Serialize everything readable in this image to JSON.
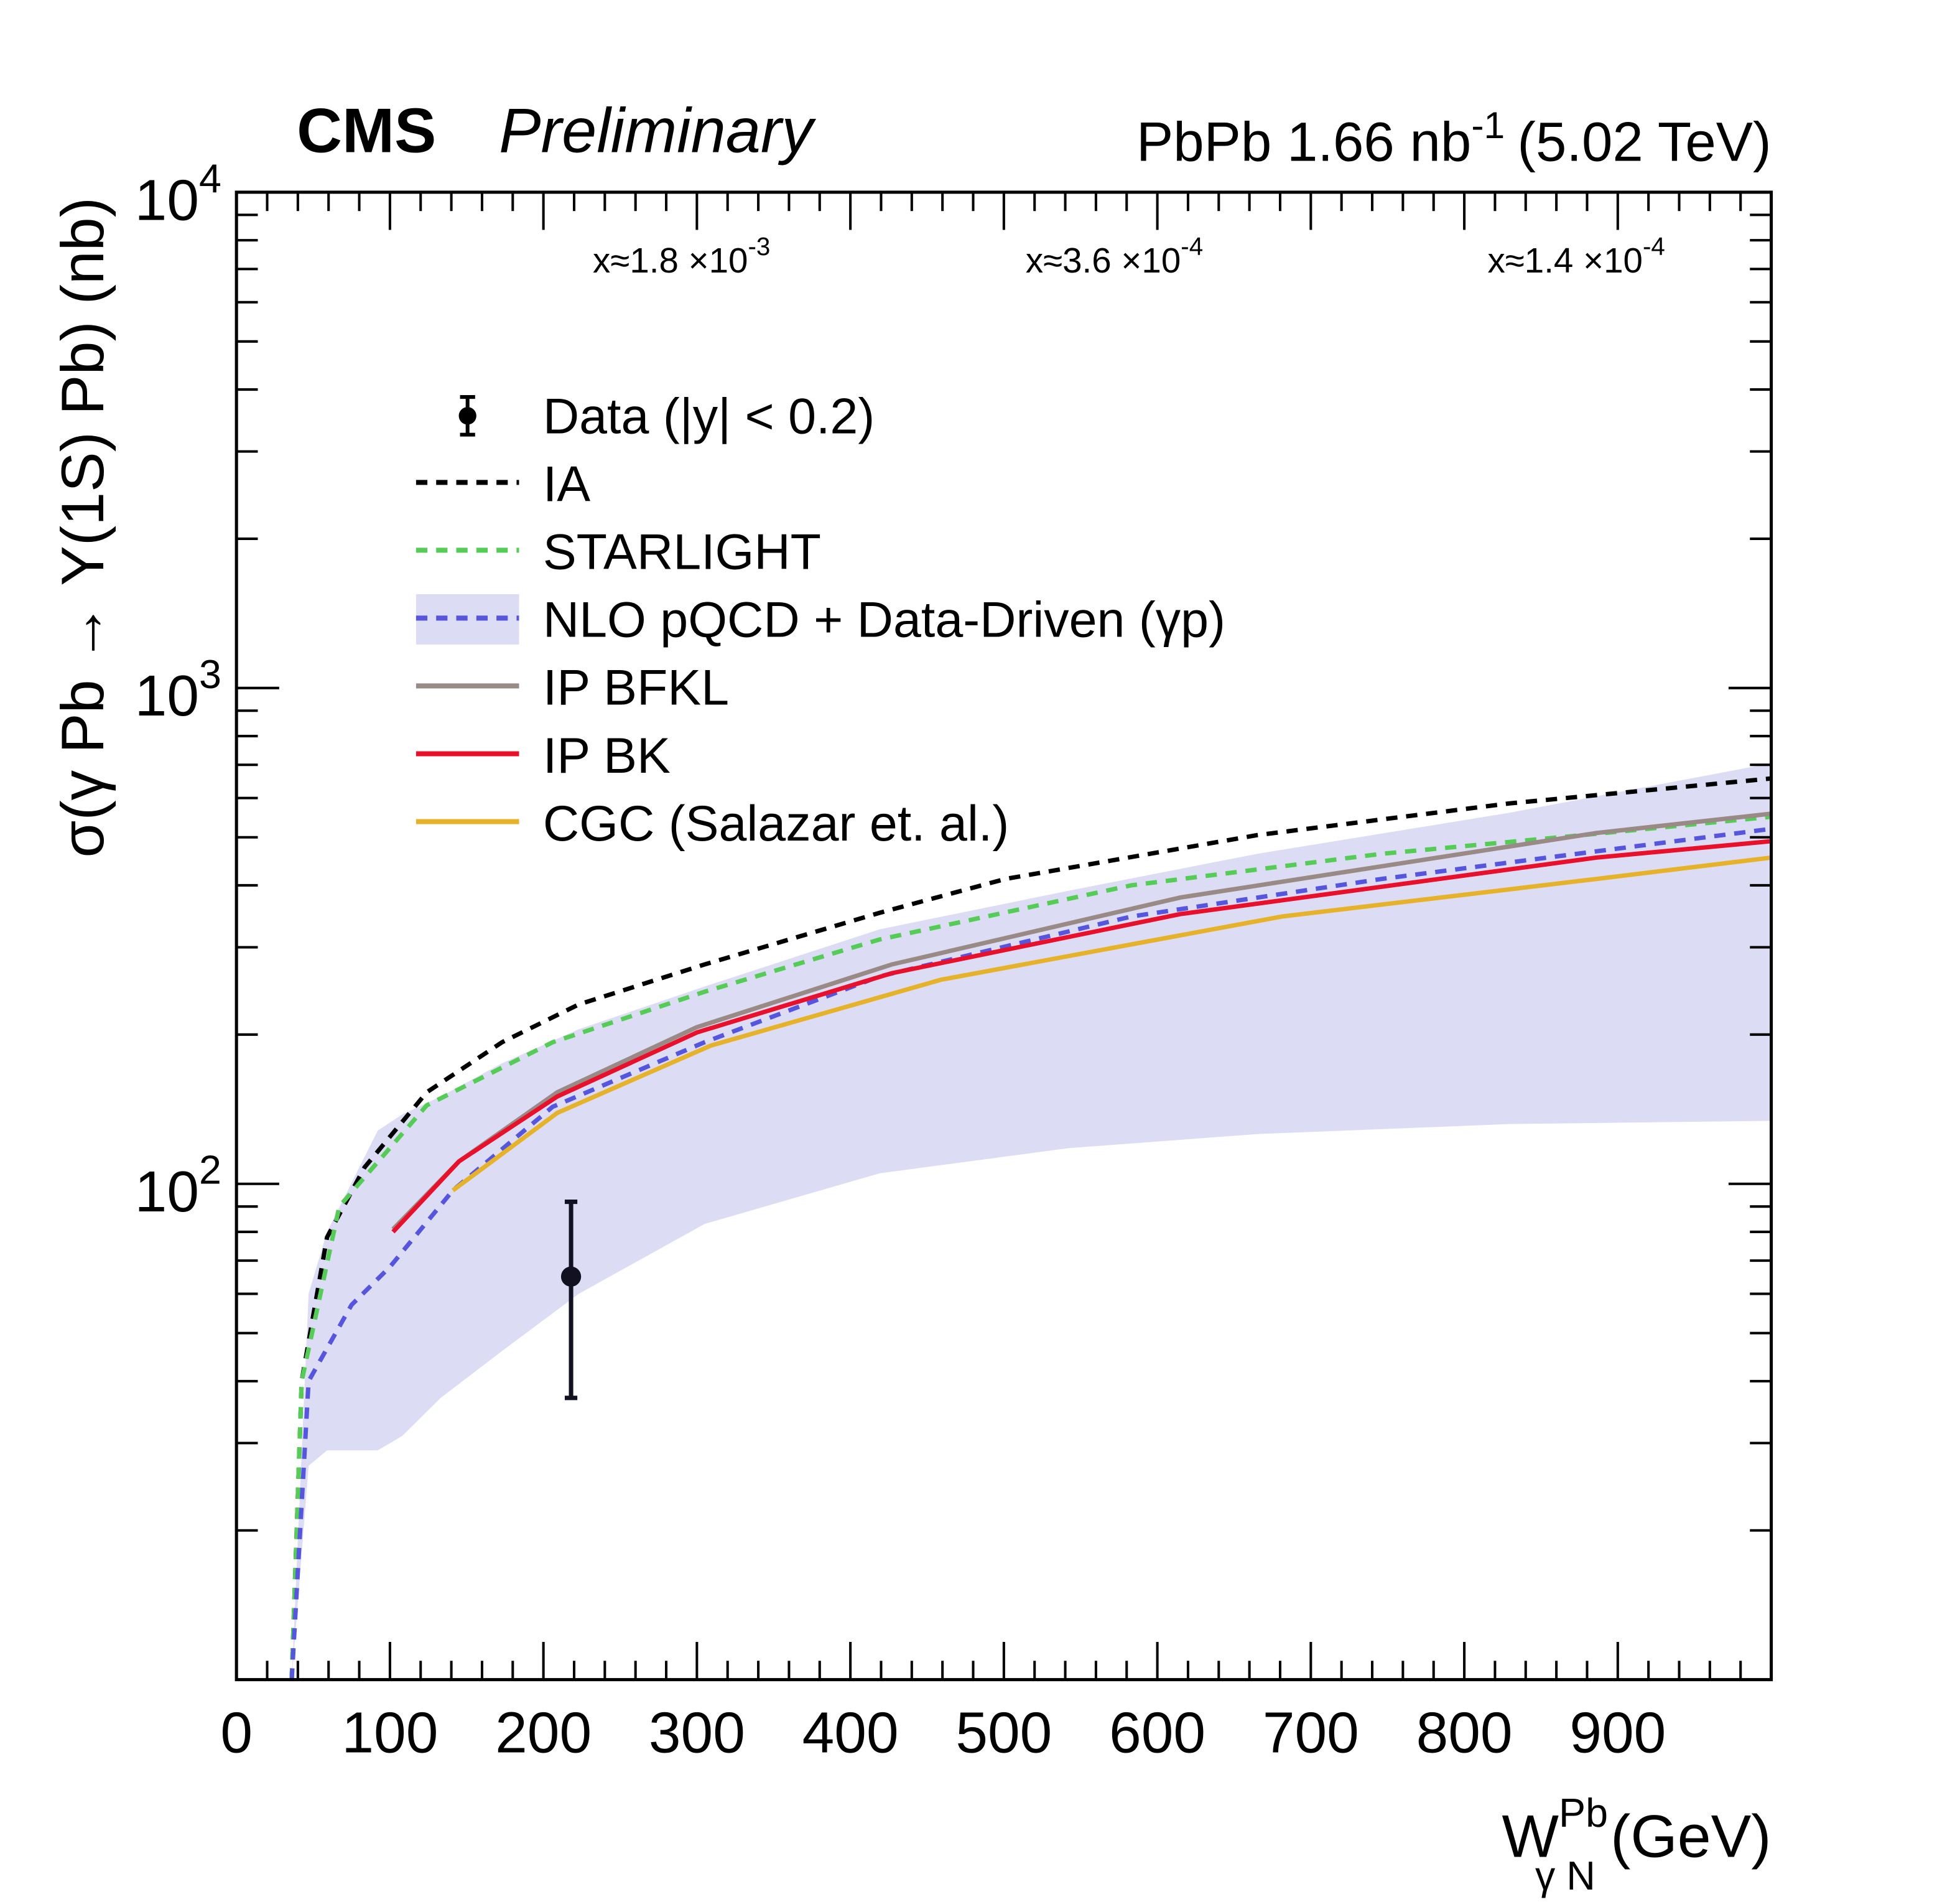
{
  "chart_data": {
    "type": "line",
    "header": {
      "experiment": "CMS",
      "status": "Preliminary",
      "lumi_prefix": "PbPb 1.66 nb",
      "lumi_exp": "-1",
      "lumi_suffix": "(5.02 TeV)"
    },
    "xlabel": {
      "main": "W",
      "sup": "Pb",
      "sub": "γ N",
      "unit": "(GeV)"
    },
    "ylabel": "σ(γ Pb → Υ(1S) Pb)  (nb)",
    "xlim": [
      0,
      1000
    ],
    "ylim": [
      10,
      10000
    ],
    "yscale": "log",
    "xticks": [
      "0",
      "100",
      "200",
      "300",
      "400",
      "500",
      "600",
      "700",
      "800",
      "900"
    ],
    "yticks": [
      {
        "base": "10",
        "exp": "2",
        "value": 100
      },
      {
        "base": "10",
        "exp": "3",
        "value": 1000
      },
      {
        "base": "10",
        "exp": "4",
        "value": 10000
      }
    ],
    "annotations": [
      {
        "text": "x≈1.8 ×10",
        "exp": "-3",
        "at": 290
      },
      {
        "text": "x≈3.6 ×10",
        "exp": "-4",
        "at": 572
      },
      {
        "text": "x≈1.4 ×10",
        "exp": "-4",
        "at": 873
      }
    ],
    "legend": {
      "placement": "top-left",
      "entries": [
        "Data (|y| < 0.2)",
        "IA",
        "STARLIGHT",
        "NLO pQCD + Data-Driven (γp)",
        "IP BFKL",
        "IP BK",
        "CGC (Salazar et. al.)"
      ]
    },
    "data": {
      "name": "Data (|y| < 0.2)",
      "x": 218,
      "y": 65,
      "err_low": 28,
      "err_high": 27,
      "color": "#111122"
    },
    "band": {
      "name": "NLO pQCD + Data-Driven (γp) band",
      "color": "#dcdcf5",
      "x": [
        36,
        47,
        59,
        92,
        108,
        133,
        173,
        223,
        305,
        419,
        542,
        665,
        829,
        1000
      ],
      "upper": [
        10,
        60,
        80,
        128,
        138,
        150,
        175,
        205,
        250,
        326,
        390,
        463,
        560,
        705
      ],
      "lower": [
        10,
        27,
        29,
        29,
        31,
        37,
        46,
        60,
        83,
        105,
        118,
        126,
        132,
        134
      ]
    },
    "series": [
      {
        "name": "IA",
        "color": "#000000",
        "dash": true,
        "x": [
          36,
          42.5,
          59,
          83.5,
          124,
          173,
          223,
          305,
          419,
          501,
          665,
          829,
          1000
        ],
        "y": [
          10,
          40,
          78,
          108,
          153,
          193,
          230,
          277,
          352,
          412,
          505,
          585,
          657
        ]
      },
      {
        "name": "STARLIGHT",
        "color": "#55cc55",
        "dash": true,
        "x": [
          36,
          42.5,
          67,
          124,
          206,
          305,
          419,
          583,
          746,
          877,
          1000
        ],
        "y": [
          10,
          40,
          90,
          144,
          193,
          244,
          311,
          400,
          463,
          505,
          550
        ]
      },
      {
        "name": "NLO pQCD + Data-Driven (γp)",
        "color": "#5555dd",
        "dash": true,
        "x": [
          36,
          47,
          75,
          100,
          141,
          206,
          305,
          419,
          583,
          746,
          1000
        ],
        "y": [
          10,
          40,
          57,
          68,
          97,
          143,
          193,
          262,
          346,
          412,
          520
        ]
      },
      {
        "name": "IP BFKL",
        "color": "#9a8a85",
        "dash": false,
        "x": [
          102,
          145,
          209,
          300,
          427,
          615,
          886,
          1000
        ],
        "y": [
          81,
          111,
          153,
          207,
          277,
          378,
          510,
          558
        ]
      },
      {
        "name": "IP BK",
        "color": "#e8102a",
        "dash": false,
        "x": [
          102,
          145,
          209,
          300,
          427,
          615,
          886,
          1000
        ],
        "y": [
          80,
          111,
          150,
          202,
          266,
          350,
          455,
          491
        ]
      },
      {
        "name": "CGC (Salazar et. al.)",
        "color": "#e6b22a",
        "dash": false,
        "x": [
          141,
          209,
          309,
          459,
          681,
          886,
          1000
        ],
        "y": [
          97,
          139,
          190,
          258,
          346,
          412,
          455
        ]
      }
    ]
  }
}
